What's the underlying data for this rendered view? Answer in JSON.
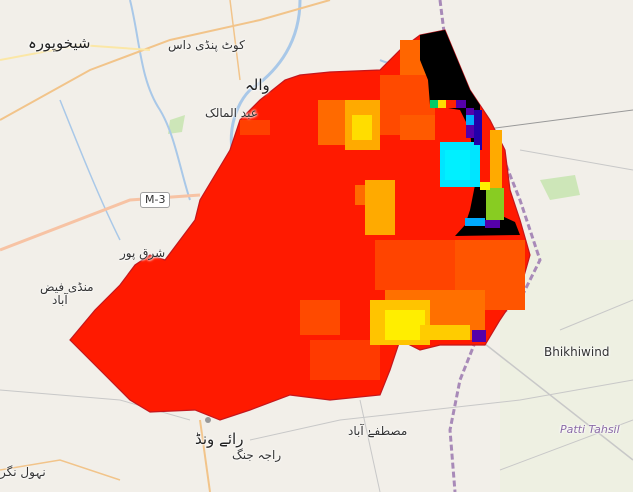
{
  "map": {
    "labels": {
      "sheikhupura": "شیخوپورہ",
      "kot_pindi_das": "کوٹ پنڈی داس",
      "nawala": "والہ",
      "abd_ul_malik": "عبد المالک",
      "sharaqpur": "شرق پور",
      "mandi_faiz": "منڈی فیض",
      "abad": "آباد",
      "raiwind": "رائے ونڈ",
      "raja_jang": "راجہ جنگ",
      "mustafabad": "مصطفےٰ آباد",
      "jhol_nagar": "نہول نگر",
      "bhikhiwind": "Bhikhiwind",
      "patti_tehsil": "Patti Tahsil",
      "motorway": "M-3"
    },
    "colors": {
      "background": "#f2efe9",
      "overlay_red": "#ff1a00",
      "overlay_orange": "#ff6600",
      "overlay_amber": "#ffaa00",
      "overlay_yellow": "#ffee00",
      "overlay_black": "#000000",
      "overlay_cyan": "#00e5ff",
      "overlay_green": "#88cc22",
      "overlay_purple": "#5500aa",
      "border": "#a88ab8",
      "motorway": "#f7c3a4"
    }
  }
}
